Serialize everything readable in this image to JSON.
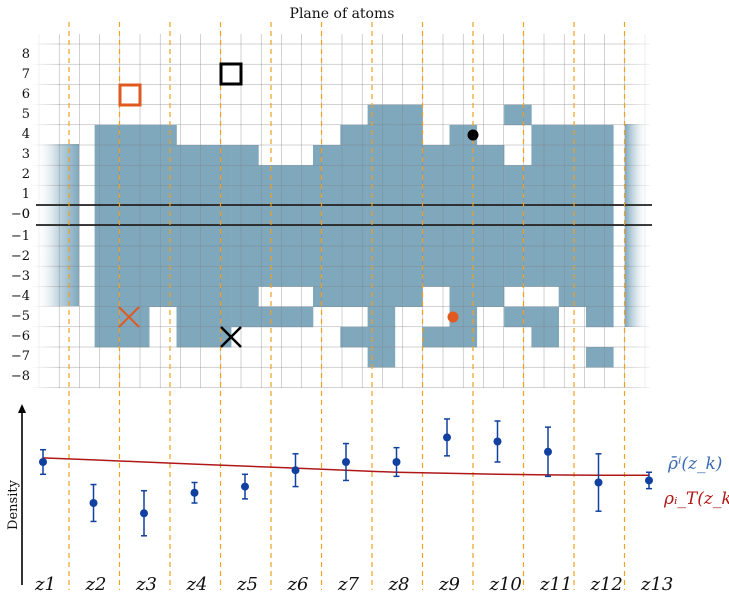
{
  "title": "Plane of atoms",
  "density_label": "Density",
  "row_labels": [
    "8",
    "7",
    "6",
    "5",
    "4",
    "3",
    "2",
    "1",
    "0",
    "−0",
    "−1",
    "−2",
    "−3",
    "−4",
    "−5",
    "−6",
    "−7",
    "−8"
  ],
  "column_labels": [
    "z1",
    "z2",
    "z3",
    "z4",
    "z5",
    "z6",
    "z7",
    "z8",
    "z9",
    "z10",
    "z11",
    "z12",
    "z13"
  ],
  "legend": {
    "rho_bar": "ρ̄ⁱ(z_k)",
    "rho_T": "ρᵢ_T(z_k)"
  },
  "colors": {
    "filled_cell": "#7fa8bd",
    "grid_line": "#808080",
    "dashed_divider": "#f0a020",
    "orange_marker": "#e05a20",
    "black_marker": "#000000",
    "point_color": "#1040a0",
    "curve_color": "#b01818",
    "rho_bar_color": "#3a6ab0",
    "rho_T_color": "#b01818"
  },
  "grid_fill_rows": [
    "                    ",
    "                    ",
    "                    ",
    "            ##   #  ",
    "  ###      ### #  ### ",
    "  ######  ####### ### ",
    "  ####################",
    "  ####################",
    "  ####################",
    "  ####################",
    "  ####################",
    "  ####################",
    "  ######  #### ##  ###",
    "  ## #####  #  # ## ##",
    "  ## ##    ## ##  #   ",
    "            #       # ",
    "                    ",
    "                    "
  ],
  "density_points": [
    {
      "label": "z1",
      "value": 0.6,
      "err": 0.06
    },
    {
      "label": "z2",
      "value": 0.4,
      "err": 0.09
    },
    {
      "label": "z3",
      "value": 0.35,
      "err": 0.11
    },
    {
      "label": "z4",
      "value": 0.45,
      "err": 0.05
    },
    {
      "label": "z5",
      "value": 0.48,
      "err": 0.06
    },
    {
      "label": "z6",
      "value": 0.56,
      "err": 0.08
    },
    {
      "label": "z7",
      "value": 0.6,
      "err": 0.09
    },
    {
      "label": "z8",
      "value": 0.6,
      "err": 0.07
    },
    {
      "label": "z9",
      "value": 0.72,
      "err": 0.09
    },
    {
      "label": "z10",
      "value": 0.7,
      "err": 0.1
    },
    {
      "label": "z11",
      "value": 0.65,
      "err": 0.12
    },
    {
      "label": "z12",
      "value": 0.5,
      "err": 0.14
    },
    {
      "label": "z13",
      "value": 0.51,
      "err": 0.04
    }
  ],
  "curve_points": [
    0.62,
    0.61,
    0.6,
    0.59,
    0.58,
    0.57,
    0.56,
    0.55,
    0.545,
    0.54,
    0.537,
    0.535,
    0.535
  ]
}
